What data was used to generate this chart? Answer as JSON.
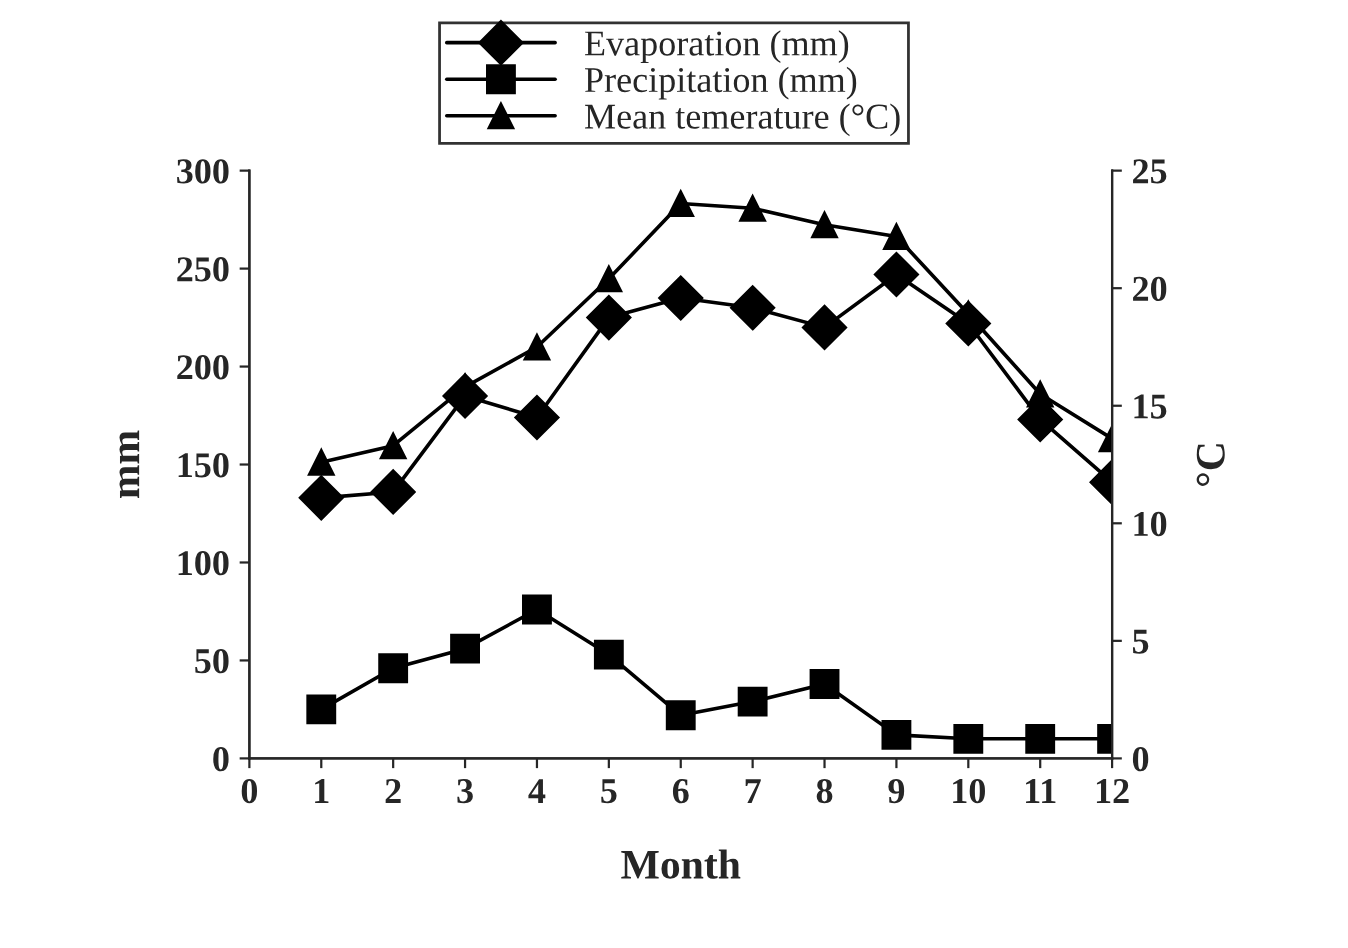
{
  "chart_data": {
    "type": "line",
    "xlabel": "Month",
    "ylabel": "mm",
    "y2label": "°C",
    "x": [
      1,
      2,
      3,
      4,
      5,
      6,
      7,
      8,
      9,
      10,
      11,
      12
    ],
    "series": [
      {
        "name": "Evaporation (mm)",
        "color": "#000000",
        "marker": "diamond",
        "values": [
          133,
          136,
          185,
          174,
          225,
          235,
          230,
          220,
          247,
          222,
          173,
          141
        ]
      },
      {
        "name": "Precipitation (mm)",
        "color": "#000000",
        "marker": "square",
        "values": [
          25,
          46,
          56,
          76,
          53,
          22,
          29,
          38,
          12,
          10,
          10,
          10
        ]
      },
      {
        "name": "Mean temerature (°C)",
        "color": "#000000",
        "marker": "triangle",
        "axis": "y2",
        "values": [
          12.6,
          13.3,
          15.8,
          17.5,
          20.4,
          23.6,
          23.4,
          22.7,
          22.2,
          18.9,
          15.5,
          13.6
        ]
      }
    ],
    "xlim": [
      0,
      12
    ],
    "xticks": [
      0,
      1,
      2,
      3,
      4,
      5,
      6,
      7,
      8,
      9,
      10,
      11,
      12
    ],
    "ylim": [
      0,
      300
    ],
    "yticks": [
      0,
      50,
      100,
      150,
      200,
      250,
      300
    ],
    "y2lim": [
      0,
      25
    ],
    "y2ticks": [
      0,
      5,
      10,
      15,
      20,
      25
    ],
    "grid": false,
    "legend": "top",
    "line_style": "solid"
  }
}
